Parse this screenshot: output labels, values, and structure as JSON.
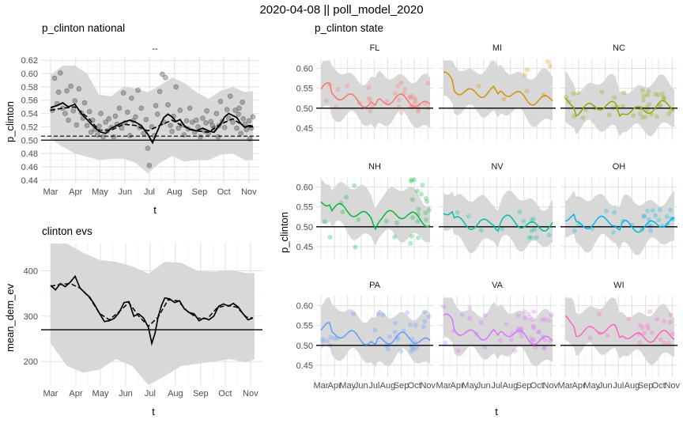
{
  "figure": {
    "title": "2020-04-08 || poll_model_2020",
    "theme": {
      "panel_bg": "#ffffff",
      "grid_major": "#e0e0e0",
      "grid_minor": "#efefef",
      "ribbon": "#d6d6d6",
      "reference_line": "#000000"
    }
  },
  "chart_data": [
    {
      "id": "national",
      "type": "line",
      "title": "p_clinton national",
      "strip": "--",
      "xlabel": "t",
      "ylabel": "p_clinton",
      "x_tick_labels": [
        "Mar",
        "Apr",
        "May",
        "Jun",
        "Jul",
        "Aug",
        "Sep",
        "Oct",
        "Nov"
      ],
      "x_range_days": [
        0,
        250
      ],
      "x_tick_days": [
        0,
        31,
        61,
        92,
        122,
        153,
        184,
        214,
        245
      ],
      "ylim": [
        0.435,
        0.625
      ],
      "y_ticks": [
        0.44,
        0.46,
        0.48,
        0.5,
        0.52,
        0.54,
        0.56,
        0.58,
        0.6,
        0.62
      ],
      "y_tick_labels": [
        "0.44",
        "0.46",
        "0.48",
        "0.50",
        "0.52",
        "0.54",
        "0.56",
        "0.58",
        "0.60",
        "0.62"
      ],
      "hlines": [
        {
          "y": 0.5,
          "style": "solid"
        },
        {
          "y": 0.506,
          "style": "dashed"
        }
      ],
      "series": [
        {
          "style": "solid",
          "x": [
            0,
            8,
            15,
            22,
            30,
            38,
            45,
            52,
            60,
            68,
            75,
            82,
            90,
            98,
            105,
            112,
            120,
            126,
            130,
            135,
            140,
            145,
            150,
            155,
            160,
            165,
            172,
            180,
            188,
            195,
            202,
            210,
            215,
            220,
            225,
            230,
            235,
            240,
            245,
            250
          ],
          "y": [
            0.549,
            0.552,
            0.556,
            0.55,
            0.554,
            0.54,
            0.531,
            0.522,
            0.513,
            0.51,
            0.518,
            0.522,
            0.527,
            0.53,
            0.527,
            0.522,
            0.509,
            0.496,
            0.508,
            0.522,
            0.534,
            0.539,
            0.535,
            0.528,
            0.531,
            0.522,
            0.516,
            0.514,
            0.518,
            0.514,
            0.512,
            0.524,
            0.535,
            0.54,
            0.537,
            0.534,
            0.525,
            0.519,
            0.522,
            0.521
          ]
        },
        {
          "style": "dashed",
          "x": [
            0,
            15,
            30,
            45,
            60,
            75,
            90,
            105,
            120,
            135,
            150,
            165,
            180,
            195,
            210,
            225,
            240,
            250
          ],
          "y": [
            0.545,
            0.548,
            0.55,
            0.535,
            0.515,
            0.515,
            0.524,
            0.522,
            0.514,
            0.522,
            0.53,
            0.52,
            0.514,
            0.512,
            0.524,
            0.532,
            0.52,
            0.52
          ]
        }
      ],
      "ribbon": {
        "x": [
          0,
          15,
          30,
          45,
          60,
          75,
          90,
          105,
          120,
          135,
          150,
          165,
          180,
          195,
          210,
          225,
          240,
          250
        ],
        "lower": [
          0.502,
          0.49,
          0.48,
          0.475,
          0.47,
          0.472,
          0.472,
          0.466,
          0.45,
          0.466,
          0.476,
          0.468,
          0.47,
          0.47,
          0.478,
          0.48,
          0.47,
          0.47
        ],
        "upper": [
          0.598,
          0.612,
          0.612,
          0.6,
          0.568,
          0.566,
          0.58,
          0.578,
          0.572,
          0.582,
          0.594,
          0.586,
          0.572,
          0.562,
          0.574,
          0.58,
          0.572,
          0.574
        ]
      },
      "points": {
        "x": [
          2,
          5,
          8,
          10,
          12,
          15,
          18,
          20,
          22,
          25,
          28,
          30,
          32,
          35,
          38,
          40,
          42,
          45,
          48,
          50,
          52,
          55,
          58,
          60,
          62,
          65,
          68,
          70,
          72,
          75,
          78,
          80,
          82,
          85,
          88,
          90,
          92,
          95,
          98,
          100,
          102,
          105,
          108,
          110,
          112,
          115,
          118,
          120,
          122,
          125,
          128,
          130,
          132,
          135,
          138,
          140,
          142,
          145,
          148,
          150,
          152,
          155,
          158,
          160,
          162,
          165,
          168,
          170,
          172,
          175,
          178,
          180,
          182,
          185,
          188,
          190,
          192,
          195,
          198,
          200,
          202,
          205,
          208,
          210,
          212,
          215,
          218,
          220,
          222,
          225,
          228,
          230,
          232,
          235,
          238,
          240,
          242,
          245,
          248,
          250,
          207,
          237,
          246,
          233,
          193
        ],
        "y": [
          0.545,
          0.593,
          0.555,
          0.572,
          0.601,
          0.548,
          0.54,
          0.574,
          0.53,
          0.581,
          0.544,
          0.559,
          0.523,
          0.577,
          0.541,
          0.533,
          0.556,
          0.522,
          0.543,
          0.512,
          0.53,
          0.516,
          0.508,
          0.521,
          0.54,
          0.505,
          0.527,
          0.514,
          0.532,
          0.519,
          0.505,
          0.536,
          0.524,
          0.548,
          0.518,
          0.571,
          0.526,
          0.542,
          0.507,
          0.563,
          0.529,
          0.535,
          0.575,
          0.519,
          0.548,
          0.51,
          0.531,
          0.488,
          0.462,
          0.52,
          0.507,
          0.552,
          0.539,
          0.573,
          0.599,
          0.527,
          0.594,
          0.553,
          0.522,
          0.513,
          0.536,
          0.58,
          0.518,
          0.545,
          0.523,
          0.508,
          0.529,
          0.517,
          0.548,
          0.527,
          0.512,
          0.53,
          0.52,
          0.505,
          0.533,
          0.514,
          0.526,
          0.51,
          0.528,
          0.522,
          0.518,
          0.54,
          0.522,
          0.558,
          0.528,
          0.519,
          0.546,
          0.533,
          0.566,
          0.527,
          0.545,
          0.518,
          0.539,
          0.51,
          0.532,
          0.524,
          0.516,
          0.529,
          0.518,
          0.535,
          0.505,
          0.557,
          0.502,
          0.548,
          0.544
        ],
        "color": "#000000"
      }
    },
    {
      "id": "evs",
      "type": "line",
      "title": "clinton evs",
      "xlabel": "t",
      "ylabel": "mean_dem_ev",
      "x_tick_labels": [
        "Mar",
        "Apr",
        "May",
        "Jun",
        "Jul",
        "Aug",
        "Sep",
        "Oct",
        "Nov"
      ],
      "x_range_days": [
        0,
        250
      ],
      "x_tick_days": [
        0,
        31,
        61,
        92,
        122,
        153,
        184,
        214,
        245
      ],
      "ylim": [
        148,
        462
      ],
      "y_ticks": [
        200,
        300,
        400
      ],
      "y_tick_labels": [
        "200",
        "300",
        "400"
      ],
      "hlines": [
        {
          "y": 270,
          "style": "solid"
        }
      ],
      "series": [
        {
          "style": "solid",
          "x": [
            0,
            6,
            12,
            18,
            24,
            30,
            36,
            42,
            48,
            54,
            60,
            66,
            72,
            78,
            84,
            90,
            96,
            102,
            108,
            114,
            120,
            124,
            128,
            132,
            136,
            140,
            146,
            152,
            158,
            164,
            170,
            176,
            182,
            188,
            194,
            200,
            206,
            212,
            218,
            224,
            230,
            236,
            242,
            248
          ],
          "y": [
            368,
            358,
            372,
            365,
            375,
            388,
            362,
            352,
            342,
            325,
            306,
            288,
            290,
            295,
            308,
            330,
            332,
            300,
            305,
            296,
            275,
            240,
            262,
            300,
            324,
            340,
            338,
            330,
            334,
            316,
            308,
            305,
            290,
            296,
            292,
            300,
            322,
            327,
            322,
            328,
            320,
            305,
            292,
            296
          ]
        },
        {
          "style": "dashed",
          "x": [
            0,
            12,
            24,
            36,
            48,
            60,
            72,
            84,
            96,
            108,
            120,
            132,
            144,
            156,
            168,
            180,
            192,
            204,
            216,
            228,
            240,
            248
          ],
          "y": [
            366,
            370,
            372,
            362,
            340,
            306,
            292,
            310,
            330,
            300,
            278,
            298,
            336,
            334,
            310,
            296,
            294,
            318,
            324,
            320,
            298,
            296
          ]
        }
      ],
      "ribbon": {
        "x": [
          0,
          20,
          40,
          60,
          80,
          100,
          120,
          140,
          160,
          180,
          200,
          220,
          240,
          250
        ],
        "lower": [
          240,
          190,
          175,
          182,
          205,
          190,
          148,
          168,
          190,
          195,
          200,
          205,
          198,
          205
        ],
        "upper": [
          460,
          460,
          440,
          424,
          420,
          410,
          394,
          420,
          418,
          400,
          398,
          402,
          395,
          395
        ]
      }
    },
    {
      "id": "state",
      "type": "line",
      "title": "p_clinton state",
      "xlabel": "t",
      "ylabel": "p_clinton",
      "x_tick_labels": [
        "Mar",
        "Apr",
        "May",
        "Jun",
        "Jul",
        "Aug",
        "Sep",
        "Oct",
        "Nov"
      ],
      "x_range_days": [
        0,
        250
      ],
      "x_tick_days": [
        0,
        31,
        61,
        92,
        122,
        153,
        184,
        214,
        245
      ],
      "ylim": [
        0.42,
        0.625
      ],
      "y_ticks": [
        0.45,
        0.5,
        0.55,
        0.6
      ],
      "y_tick_labels": [
        "0.45",
        "0.50",
        "0.55",
        "0.60"
      ],
      "hline": 0.5,
      "panels": [
        {
          "state": "FL",
          "color": "#f8766d",
          "base": 0.528,
          "hi": 0.565,
          "lo": 0.485,
          "points": 34
        },
        {
          "state": "MI",
          "color": "#d39200",
          "base": 0.553,
          "hi": 0.62,
          "lo": 0.52,
          "points": 8
        },
        {
          "state": "NC",
          "color": "#93aa00",
          "base": 0.5,
          "hi": 0.545,
          "lo": 0.475,
          "points": 40
        },
        {
          "state": "NH",
          "color": "#00ba38",
          "base": 0.543,
          "hi": 0.62,
          "lo": 0.445,
          "points": 30
        },
        {
          "state": "NV",
          "color": "#00c19f",
          "base": 0.515,
          "hi": 0.56,
          "lo": 0.47,
          "points": 14
        },
        {
          "state": "OH",
          "color": "#00b9e3",
          "base": 0.51,
          "hi": 0.545,
          "lo": 0.48,
          "points": 26
        },
        {
          "state": "PA",
          "color": "#619cff",
          "base": 0.525,
          "hi": 0.585,
          "lo": 0.485,
          "points": 34
        },
        {
          "state": "VA",
          "color": "#db72fb",
          "base": 0.54,
          "hi": 0.6,
          "lo": 0.485,
          "points": 46
        },
        {
          "state": "WI",
          "color": "#ff61c3",
          "base": 0.545,
          "hi": 0.585,
          "lo": 0.505,
          "points": 22
        }
      ]
    }
  ]
}
